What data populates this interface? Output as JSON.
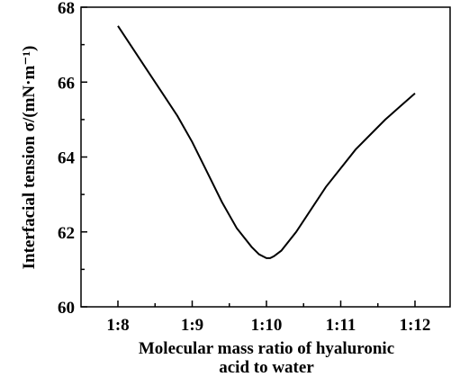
{
  "chart_data": {
    "type": "line",
    "title": "",
    "xlabel_line1": "Molecular mass ratio of hyaluronic",
    "xlabel_line2": "acid to water",
    "ylabel": "Interfacial tension σ/(mN·m⁻¹)",
    "xticks": [
      "1:8",
      "1:9",
      "1:10",
      "1:11",
      "1:12"
    ],
    "yticks": [
      60,
      62,
      64,
      66,
      68
    ],
    "xlim": [
      8,
      12
    ],
    "ylim": [
      60,
      68
    ],
    "grid": false,
    "line_color": "#000000",
    "series": [
      {
        "x": [
          8.0,
          8.2,
          8.4,
          8.6,
          8.8,
          9.0,
          9.2,
          9.4,
          9.6,
          9.8,
          9.9,
          10.0,
          10.05,
          10.1,
          10.2,
          10.4,
          10.6,
          10.8,
          11.0,
          11.2,
          11.4,
          11.6,
          11.8,
          12.0
        ],
        "y": [
          67.5,
          66.9,
          66.3,
          65.7,
          65.1,
          64.4,
          63.6,
          62.8,
          62.1,
          61.6,
          61.4,
          61.3,
          61.3,
          61.35,
          61.5,
          62.0,
          62.6,
          63.2,
          63.7,
          64.2,
          64.6,
          65.0,
          65.35,
          65.7
        ]
      }
    ]
  }
}
